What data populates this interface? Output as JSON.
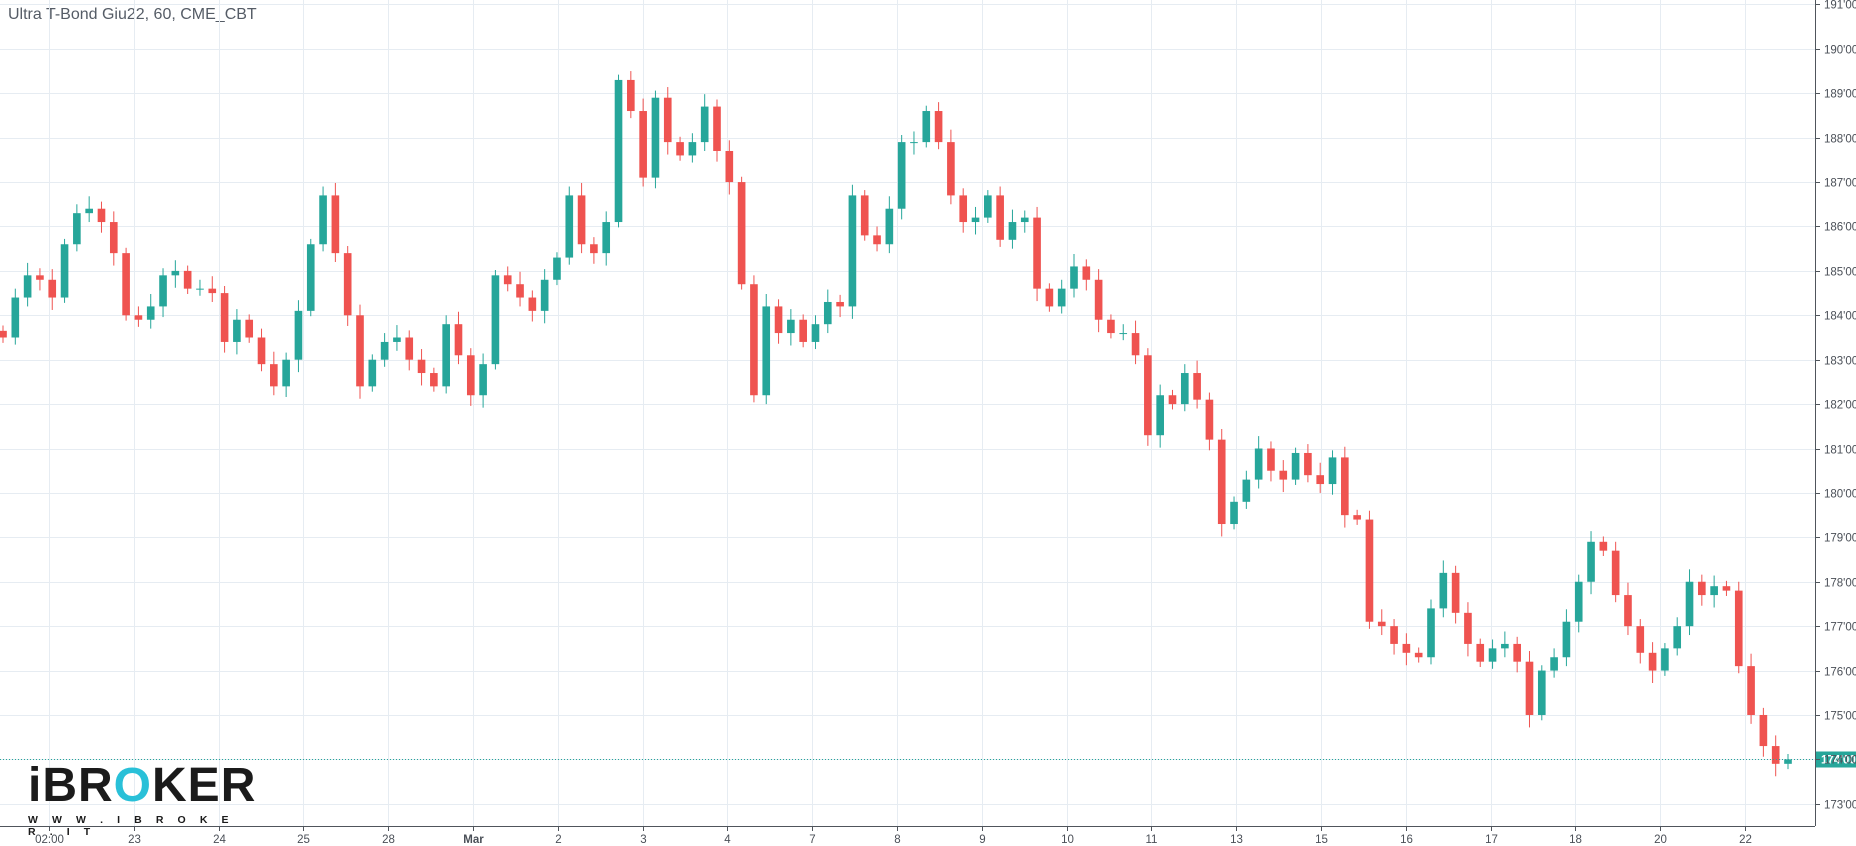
{
  "title": "Ultra T-Bond Giu22, 60, CME_CBT",
  "logo": {
    "prefix": "iBR",
    "accent": "O",
    "suffix": "KER",
    "url": "W W W . I B R O K E R . I T"
  },
  "colors": {
    "up": "#26a69a",
    "down": "#ef5350",
    "grid": "#e6ecf2",
    "last_price": "#26a69a"
  },
  "chart_data": {
    "type": "candlestick",
    "title": "Ultra T-Bond Giu22, 60, CME_CBT",
    "yticks": [
      "173'00",
      "174'00",
      "175'00",
      "176'00",
      "177'00",
      "178'00",
      "179'00",
      "180'00",
      "181'00",
      "182'00",
      "183'00",
      "184'00",
      "185'00",
      "186'00",
      "187'00",
      "188'00",
      "189'00",
      "190'00",
      "191'00"
    ],
    "ylim": [
      172.5,
      191.1
    ],
    "xticks": [
      "02:00",
      "23",
      "24",
      "25",
      "28",
      "Mar",
      "2",
      "3",
      "4",
      "7",
      "8",
      "9",
      "10",
      "11",
      "13",
      "15",
      "16",
      "17",
      "18",
      "20",
      "22"
    ],
    "last_price": {
      "label": "174'00",
      "value": 174.0
    },
    "grid": true,
    "closes": [
      183.5,
      184.4,
      184.9,
      184.8,
      184.4,
      185.6,
      186.3,
      186.4,
      186.1,
      185.4,
      184.0,
      183.9,
      184.2,
      184.9,
      185.0,
      184.6,
      184.6,
      184.5,
      183.4,
      183.9,
      183.5,
      182.9,
      182.4,
      183.0,
      184.1,
      185.6,
      186.7,
      185.4,
      184.0,
      182.4,
      183.0,
      183.4,
      183.5,
      183.0,
      182.7,
      182.4,
      183.8,
      183.1,
      182.2,
      182.9,
      184.9,
      184.7,
      184.4,
      184.1,
      184.8,
      185.3,
      186.7,
      185.6,
      185.4,
      186.1,
      189.3,
      188.6,
      187.1,
      188.9,
      187.9,
      187.6,
      187.9,
      188.7,
      187.7,
      187.0,
      184.7,
      182.2,
      184.2,
      183.6,
      183.9,
      183.4,
      183.8,
      184.3,
      184.2,
      186.7,
      185.8,
      185.6,
      186.4,
      187.9,
      187.9,
      188.6,
      187.9,
      186.7,
      186.1,
      186.2,
      186.7,
      185.7,
      186.1,
      186.2,
      184.6,
      184.2,
      184.6,
      185.1,
      184.8,
      183.9,
      183.6,
      183.6,
      183.1,
      181.3,
      182.2,
      182.0,
      182.7,
      182.1,
      181.2,
      179.3,
      179.8,
      180.3,
      181.0,
      180.5,
      180.3,
      180.9,
      180.4,
      180.2,
      180.8,
      179.5,
      179.4,
      177.1,
      177.0,
      176.6,
      176.4,
      176.3,
      177.4,
      178.2,
      177.3,
      176.6,
      176.2,
      176.5,
      176.6,
      176.2,
      175.0,
      176.0,
      176.3,
      177.1,
      178.0,
      178.9,
      178.7,
      177.7,
      177.0,
      176.4,
      176.0,
      176.5,
      177.0,
      178.0,
      177.7,
      177.9,
      177.8,
      176.1,
      175.0,
      174.3,
      173.9,
      174.0
    ]
  }
}
